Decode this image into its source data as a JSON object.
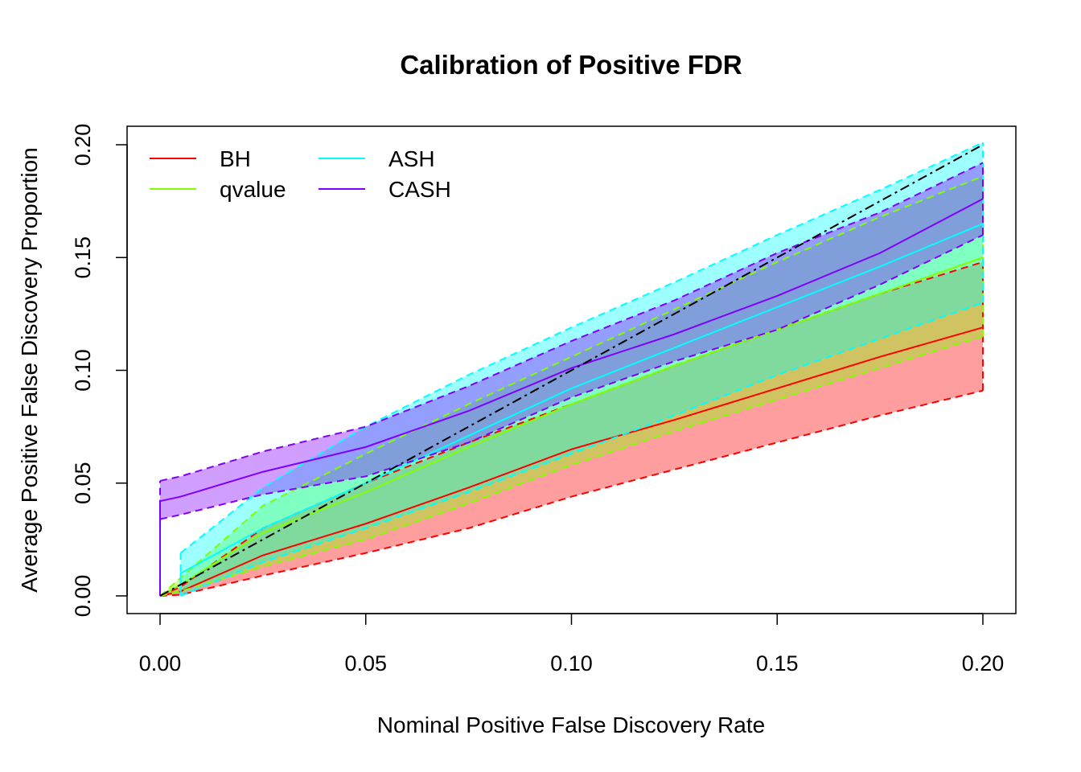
{
  "chart_data": {
    "type": "line",
    "title": "Calibration of Positive FDR",
    "xlabel": "Nominal Positive False Discovery Rate",
    "ylabel": "Average Positive False Discovery Proportion",
    "xlim": [
      -0.008,
      0.208
    ],
    "ylim": [
      -0.008,
      0.208
    ],
    "xticks": [
      "0.00",
      "0.05",
      "0.10",
      "0.15",
      "0.20"
    ],
    "yticks": [
      "0.00",
      "0.05",
      "0.10",
      "0.15",
      "0.20"
    ],
    "grid": false,
    "legend_position": "top-left",
    "reference_line": {
      "style": "dash-dot",
      "color": "#000000",
      "from": [
        0,
        0
      ],
      "to": [
        0.2,
        0.2
      ]
    },
    "series": [
      {
        "name": "BH",
        "color": "#FF0000",
        "x": [
          0,
          0.005,
          0.025,
          0.05,
          0.075,
          0.1,
          0.125,
          0.15,
          0.175,
          0.2
        ],
        "mean": [
          0,
          0.002,
          0.018,
          0.032,
          0.048,
          0.065,
          0.078,
          0.092,
          0.106,
          0.119
        ],
        "lower": [
          0,
          0.0005,
          0.009,
          0.019,
          0.03,
          0.044,
          0.056,
          0.068,
          0.08,
          0.091
        ],
        "upper": [
          0,
          0.004,
          0.03,
          0.05,
          0.068,
          0.085,
          0.102,
          0.118,
          0.134,
          0.148
        ]
      },
      {
        "name": "qvalue",
        "color": "#80FF00",
        "x": [
          0,
          0.005,
          0.025,
          0.05,
          0.075,
          0.1,
          0.125,
          0.15,
          0.175,
          0.2
        ],
        "mean": [
          0,
          0.005,
          0.028,
          0.046,
          0.066,
          0.085,
          0.102,
          0.118,
          0.134,
          0.15
        ],
        "lower": [
          0,
          0.002,
          0.013,
          0.025,
          0.041,
          0.058,
          0.073,
          0.087,
          0.101,
          0.115
        ],
        "upper": [
          0,
          0.008,
          0.04,
          0.063,
          0.085,
          0.106,
          0.127,
          0.148,
          0.168,
          0.186
        ]
      },
      {
        "name": "ASH",
        "color": "#00FFFF",
        "x": [
          0.005,
          0.025,
          0.05,
          0.075,
          0.1,
          0.125,
          0.15,
          0.175,
          0.2
        ],
        "mean": [
          0.01,
          0.03,
          0.05,
          0.071,
          0.092,
          0.11,
          0.128,
          0.146,
          0.165
        ],
        "lower": [
          0,
          0.015,
          0.03,
          0.046,
          0.063,
          0.08,
          0.098,
          0.114,
          0.13
        ],
        "upper": [
          0.019,
          0.048,
          0.075,
          0.098,
          0.119,
          0.139,
          0.16,
          0.18,
          0.201
        ]
      },
      {
        "name": "CASH",
        "color": "#8000FF",
        "x": [
          0,
          0.005,
          0.025,
          0.05,
          0.075,
          0.1,
          0.125,
          0.15,
          0.175,
          0.2
        ],
        "mean": [
          0.042,
          0.044,
          0.055,
          0.066,
          0.082,
          0.101,
          0.116,
          0.133,
          0.152,
          0.176
        ],
        "lower": [
          0.034,
          0.036,
          0.045,
          0.053,
          0.068,
          0.088,
          0.104,
          0.118,
          0.138,
          0.16
        ],
        "upper": [
          0.051,
          0.053,
          0.064,
          0.075,
          0.093,
          0.113,
          0.131,
          0.152,
          0.17,
          0.192
        ]
      }
    ]
  }
}
